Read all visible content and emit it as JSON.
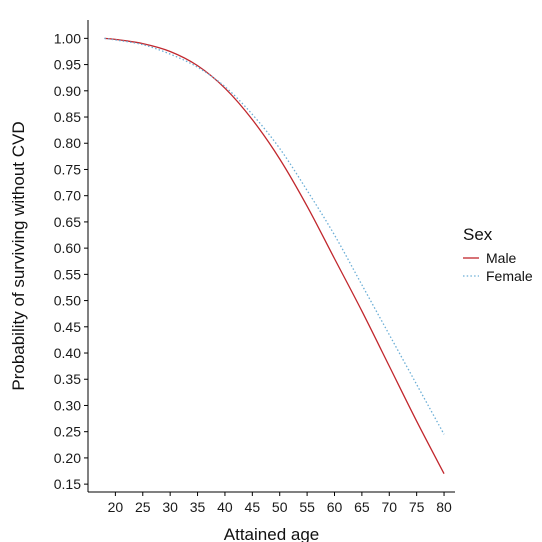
{
  "chart_data": {
    "type": "line",
    "title": "",
    "xlabel": "Attained age",
    "ylabel": "Probability of surviving without CVD",
    "xlim": [
      15,
      82
    ],
    "ylim": [
      0.135,
      1.035
    ],
    "x_ticks": [
      20,
      25,
      30,
      35,
      40,
      45,
      50,
      55,
      60,
      65,
      70,
      75,
      80
    ],
    "x_tick_labels": [
      "20",
      "25",
      "30",
      "35",
      "40",
      "45",
      "50",
      "55",
      "60",
      "65",
      "70",
      "75",
      "80"
    ],
    "y_ticks": [
      0.15,
      0.2,
      0.25,
      0.3,
      0.35,
      0.4,
      0.45,
      0.5,
      0.55,
      0.6,
      0.65,
      0.7,
      0.75,
      0.8,
      0.85,
      0.9,
      0.95,
      1.0
    ],
    "y_tick_labels": [
      "0.15",
      "0.20",
      "0.25",
      "0.30",
      "0.35",
      "0.40",
      "0.45",
      "0.50",
      "0.55",
      "0.60",
      "0.65",
      "0.70",
      "0.75",
      "0.80",
      "0.85",
      "0.90",
      "0.95",
      "1.00"
    ],
    "grid": false,
    "legend": {
      "title": "Sex",
      "position": "right"
    },
    "x": [
      18,
      20,
      25,
      30,
      35,
      40,
      45,
      50,
      55,
      60,
      65,
      70,
      75,
      80
    ],
    "series": [
      {
        "name": "Male",
        "color": "#c1272d",
        "style": "solid",
        "values": [
          1.0,
          0.998,
          0.99,
          0.975,
          0.948,
          0.905,
          0.845,
          0.77,
          0.68,
          0.58,
          0.48,
          0.375,
          0.27,
          0.17
        ]
      },
      {
        "name": "Female",
        "color": "#6baed6",
        "style": "dotted",
        "values": [
          1.0,
          0.997,
          0.988,
          0.97,
          0.945,
          0.908,
          0.855,
          0.79,
          0.71,
          0.625,
          0.53,
          0.435,
          0.34,
          0.245
        ]
      }
    ]
  }
}
